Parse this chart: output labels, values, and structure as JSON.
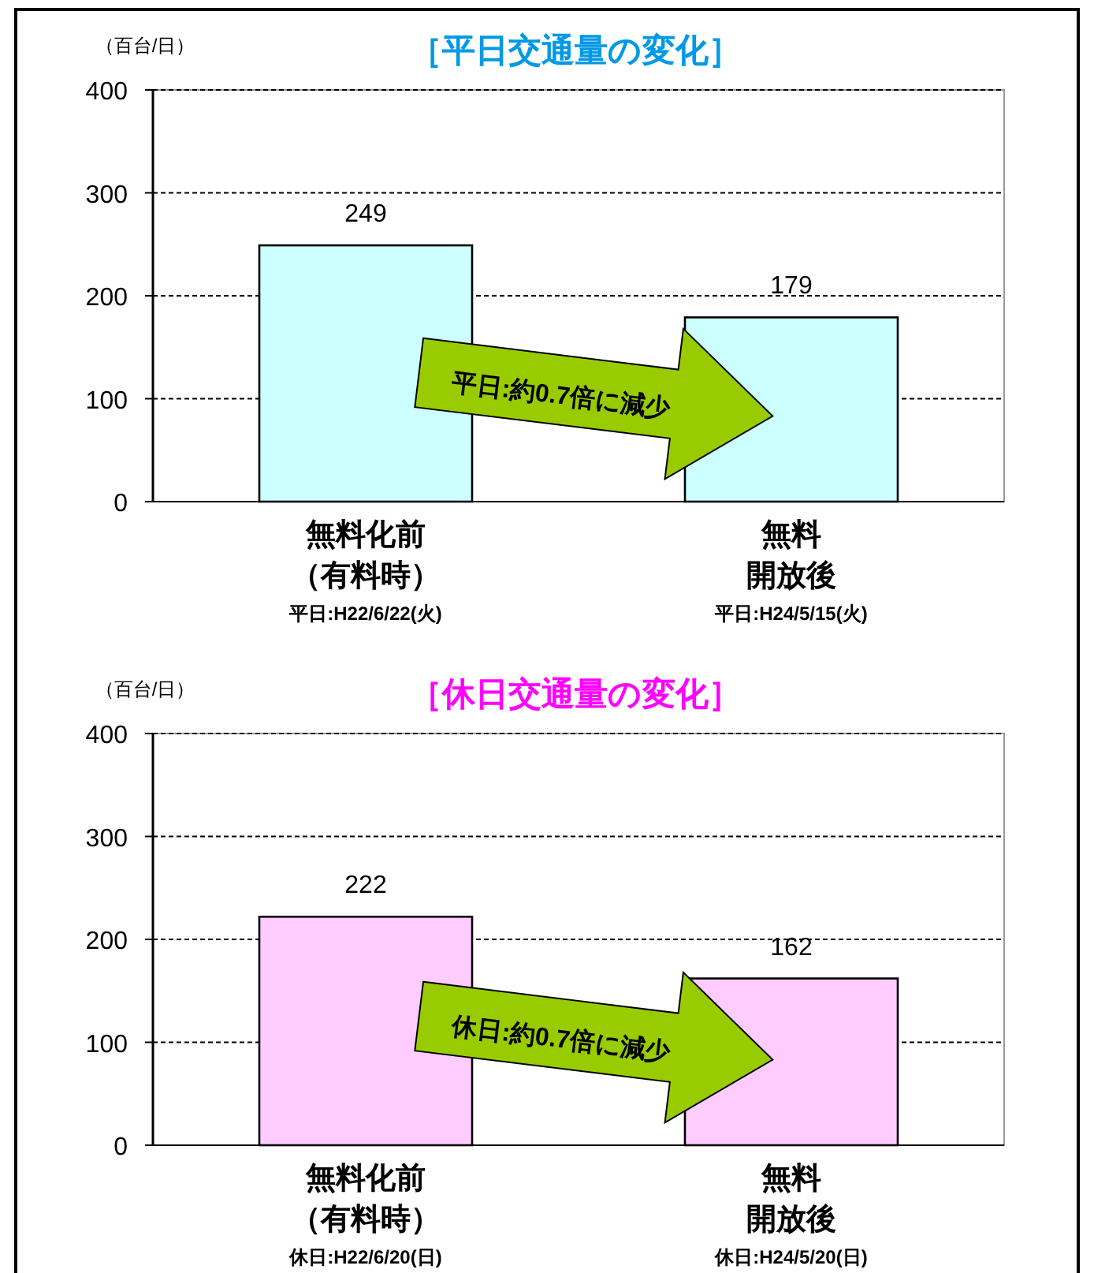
{
  "chart_data": [
    {
      "type": "bar",
      "title": "［平日交通量の変化］",
      "ylabel": "（百台/日）",
      "categories": [
        "無料化前（有料時）",
        "無料開放後"
      ],
      "series": [
        {
          "color": "#ccffff",
          "values": [
            249,
            179
          ]
        }
      ],
      "ylim": [
        0,
        400
      ],
      "yticks": [
        0,
        100,
        200,
        300,
        400
      ],
      "grid": "y",
      "data_labels": true,
      "annotations": [
        "平日:約0.7倍に減少",
        "平日:H22/6/22(火)",
        "平日:H24/5/15(火)"
      ]
    },
    {
      "type": "bar",
      "title": "［休日交通量の変化］",
      "ylabel": "（百台/日）",
      "categories": [
        "無料化前（有料時）",
        "無料開放後"
      ],
      "series": [
        {
          "color": "#ffccff",
          "values": [
            222,
            162
          ]
        }
      ],
      "ylim": [
        0,
        400
      ],
      "yticks": [
        0,
        100,
        200,
        300,
        400
      ],
      "grid": "y",
      "data_labels": true,
      "annotations": [
        "休日:約0.7倍に減少",
        "休日:H22/6/20(日)",
        "休日:H24/5/20(日)"
      ]
    }
  ]
}
